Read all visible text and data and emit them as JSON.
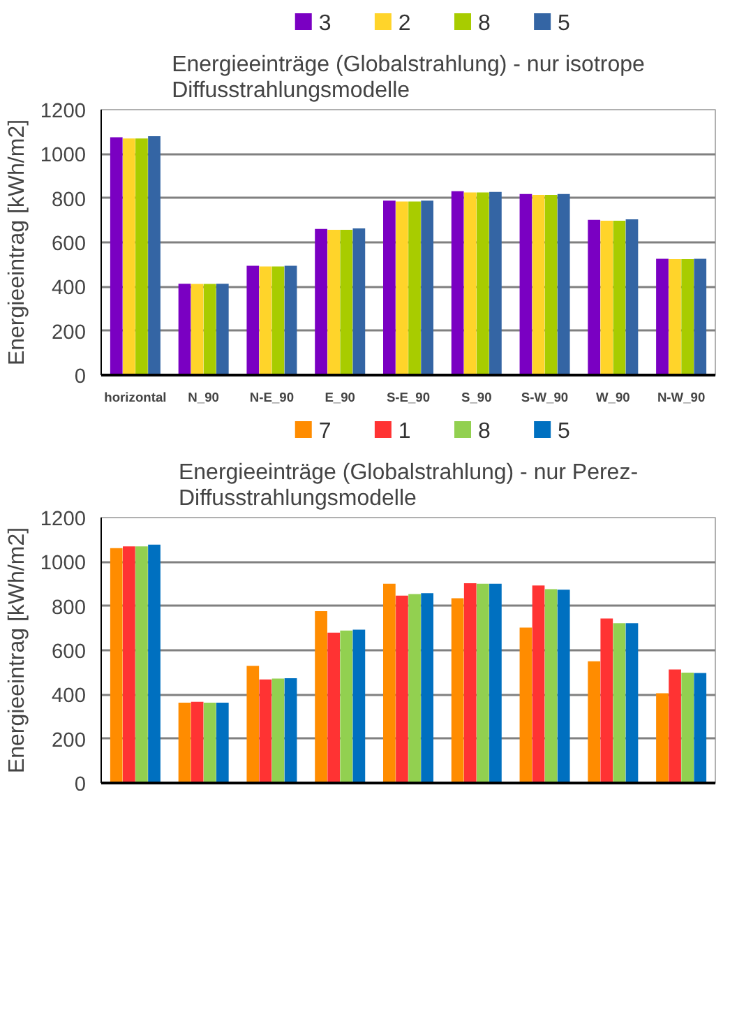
{
  "chart_data": [
    {
      "type": "bar",
      "title": "Energieeinträge (Globalstrahlung) - nur isotrope\nDiffusstrahlungsmodelle",
      "ylabel": "Energieeintrag [kWh/m2]",
      "categories": [
        "horizontal",
        "N_90",
        "N-E_90",
        "E_90",
        "S-E_90",
        "S_90",
        "S-W_90",
        "W_90",
        "N-W_90"
      ],
      "series": [
        {
          "name": "3",
          "color": "#7a00c2",
          "values": [
            1075,
            413,
            494,
            661,
            789,
            831,
            819,
            702,
            526
          ]
        },
        {
          "name": "2",
          "color": "#ffd42a",
          "values": [
            1070,
            412,
            491,
            657,
            785,
            826,
            815,
            698,
            524
          ]
        },
        {
          "name": "8",
          "color": "#a8cc00",
          "values": [
            1070,
            412,
            491,
            657,
            785,
            826,
            815,
            698,
            524
          ]
        },
        {
          "name": "5",
          "color": "#3465a4",
          "values": [
            1080,
            413,
            494,
            663,
            789,
            828,
            819,
            704,
            526
          ]
        }
      ],
      "ylim": [
        0,
        1200
      ],
      "yticks": [
        0,
        200,
        400,
        600,
        800,
        1000,
        1200
      ],
      "grid": "y",
      "legend": "top"
    },
    {
      "type": "bar",
      "title": "Energieeinträge (Globalstrahlung) - nur Perez-\nDiffusstrahlungsmodelle",
      "ylabel": "Energieeintrag [kWh/m2]",
      "categories": [
        null,
        null,
        null,
        null,
        null,
        null,
        null,
        null,
        null
      ],
      "series": [
        {
          "name": "7",
          "color": "#ff8c00",
          "values": [
            1062,
            363,
            530,
            777,
            901,
            835,
            703,
            550,
            406
          ]
        },
        {
          "name": "1",
          "color": "#ff3333",
          "values": [
            1070,
            367,
            468,
            680,
            847,
            903,
            893,
            744,
            513
          ]
        },
        {
          "name": "8",
          "color": "#92d050",
          "values": [
            1070,
            363,
            472,
            689,
            854,
            901,
            876,
            722,
            499
          ]
        },
        {
          "name": "5",
          "color": "#0070c0",
          "values": [
            1078,
            363,
            474,
            693,
            858,
            901,
            874,
            722,
            497
          ]
        }
      ],
      "ylim": [
        0,
        1200
      ],
      "yticks": [
        0,
        200,
        400,
        600,
        800,
        1000,
        1200
      ],
      "grid": "y",
      "legend": "top"
    }
  ]
}
